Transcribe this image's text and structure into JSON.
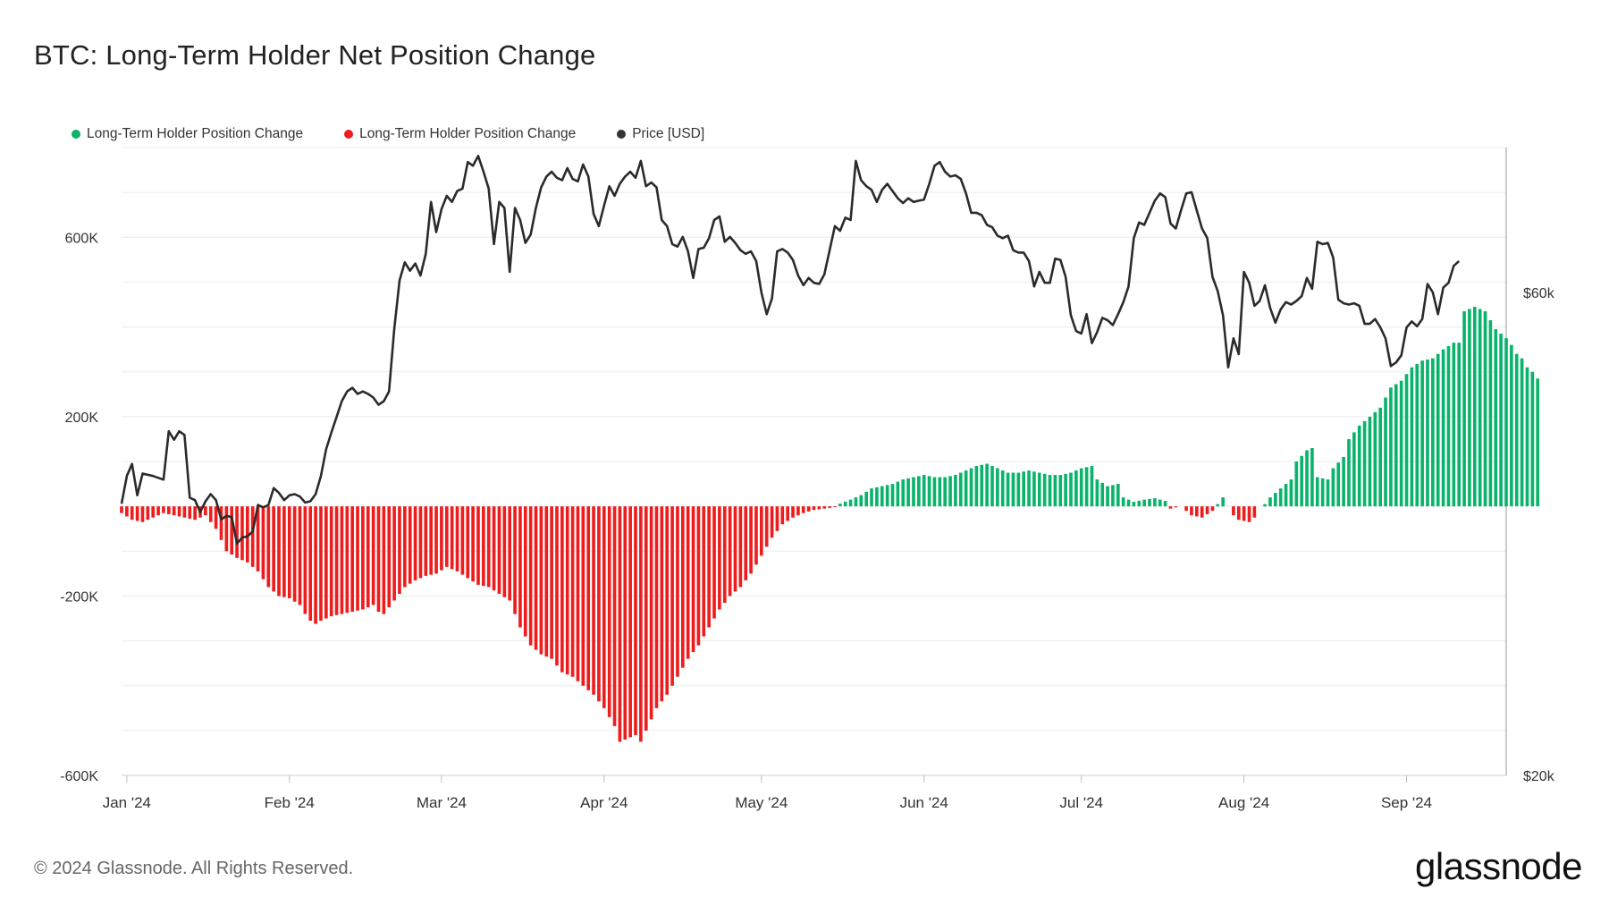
{
  "title": "BTC: Long-Term Holder Net Position Change",
  "legend": [
    {
      "label": "Long-Term Holder Position Change",
      "color": "#0ab36b"
    },
    {
      "label": "Long-Term Holder Position Change",
      "color": "#ee1c1c"
    },
    {
      "label": "Price [USD]",
      "color": "#333333"
    }
  ],
  "footer": {
    "copyright": "© 2024 Glassnode. All Rights Reserved.",
    "brand": "glassnode"
  },
  "chart_data": {
    "type": "bar",
    "title": "BTC: Long-Term Holder Net Position Change",
    "xlabel": "",
    "ylabel": "",
    "grid": true,
    "legend_position": "top-left",
    "x_tick_labels": [
      "Jan '24",
      "Feb '24",
      "Mar '24",
      "Apr '24",
      "May '24",
      "Jun '24",
      "Jul '24",
      "Aug '24",
      "Sep '24"
    ],
    "x_tick_day": [
      1,
      32,
      61,
      92,
      122,
      153,
      183,
      214,
      245
    ],
    "x_range_days": [
      0,
      264
    ],
    "left_axis": {
      "ticks": [
        600000,
        200000,
        -200000,
        -600000
      ],
      "tick_labels": [
        "600K",
        "200K",
        "-200K",
        "-600K"
      ],
      "range": [
        -600000,
        800000
      ]
    },
    "right_axis": {
      "ticks": [
        60000,
        20000
      ],
      "tick_labels": [
        "$60k",
        "$20k"
      ],
      "range": [
        20000,
        72000
      ]
    },
    "position_change_keyframes": [
      [
        0,
        -15000
      ],
      [
        2,
        -30000
      ],
      [
        4,
        -35000
      ],
      [
        6,
        -25000
      ],
      [
        8,
        -15000
      ],
      [
        10,
        -20000
      ],
      [
        12,
        -25000
      ],
      [
        14,
        -30000
      ],
      [
        16,
        -20000
      ],
      [
        18,
        -50000
      ],
      [
        20,
        -100000
      ],
      [
        22,
        -115000
      ],
      [
        24,
        -125000
      ],
      [
        26,
        -145000
      ],
      [
        28,
        -180000
      ],
      [
        30,
        -200000
      ],
      [
        32,
        -205000
      ],
      [
        34,
        -220000
      ],
      [
        35,
        -240000
      ],
      [
        36,
        -255000
      ],
      [
        37,
        -262000
      ],
      [
        38,
        -255000
      ],
      [
        40,
        -245000
      ],
      [
        42,
        -240000
      ],
      [
        44,
        -235000
      ],
      [
        46,
        -230000
      ],
      [
        48,
        -220000
      ],
      [
        49,
        -235000
      ],
      [
        50,
        -240000
      ],
      [
        52,
        -210000
      ],
      [
        54,
        -180000
      ],
      [
        56,
        -165000
      ],
      [
        58,
        -155000
      ],
      [
        60,
        -150000
      ],
      [
        62,
        -135000
      ],
      [
        64,
        -145000
      ],
      [
        66,
        -160000
      ],
      [
        68,
        -175000
      ],
      [
        70,
        -180000
      ],
      [
        72,
        -195000
      ],
      [
        74,
        -210000
      ],
      [
        76,
        -270000
      ],
      [
        78,
        -310000
      ],
      [
        80,
        -330000
      ],
      [
        82,
        -340000
      ],
      [
        84,
        -370000
      ],
      [
        86,
        -380000
      ],
      [
        88,
        -400000
      ],
      [
        90,
        -420000
      ],
      [
        92,
        -450000
      ],
      [
        94,
        -490000
      ],
      [
        95,
        -525000
      ],
      [
        96,
        -520000
      ],
      [
        98,
        -510000
      ],
      [
        99,
        -525000
      ],
      [
        100,
        -500000
      ],
      [
        102,
        -450000
      ],
      [
        104,
        -420000
      ],
      [
        106,
        -380000
      ],
      [
        108,
        -340000
      ],
      [
        110,
        -310000
      ],
      [
        112,
        -270000
      ],
      [
        114,
        -230000
      ],
      [
        116,
        -200000
      ],
      [
        118,
        -180000
      ],
      [
        120,
        -150000
      ],
      [
        122,
        -110000
      ],
      [
        124,
        -70000
      ],
      [
        126,
        -40000
      ],
      [
        128,
        -25000
      ],
      [
        130,
        -15000
      ],
      [
        132,
        -8000
      ],
      [
        134,
        -5000
      ],
      [
        136,
        -2000
      ],
      [
        137,
        6000
      ],
      [
        139,
        15000
      ],
      [
        141,
        25000
      ],
      [
        143,
        40000
      ],
      [
        145,
        45000
      ],
      [
        147,
        50000
      ],
      [
        149,
        60000
      ],
      [
        151,
        65000
      ],
      [
        153,
        70000
      ],
      [
        155,
        65000
      ],
      [
        157,
        65000
      ],
      [
        159,
        70000
      ],
      [
        161,
        80000
      ],
      [
        163,
        90000
      ],
      [
        165,
        95000
      ],
      [
        167,
        85000
      ],
      [
        169,
        75000
      ],
      [
        171,
        75000
      ],
      [
        173,
        80000
      ],
      [
        175,
        75000
      ],
      [
        177,
        70000
      ],
      [
        179,
        70000
      ],
      [
        181,
        75000
      ],
      [
        183,
        85000
      ],
      [
        185,
        90000
      ],
      [
        186,
        60000
      ],
      [
        188,
        45000
      ],
      [
        190,
        50000
      ],
      [
        191,
        20000
      ],
      [
        193,
        10000
      ],
      [
        195,
        15000
      ],
      [
        197,
        18000
      ],
      [
        199,
        12000
      ],
      [
        200,
        -5000
      ],
      [
        202,
        0
      ],
      [
        204,
        -20000
      ],
      [
        206,
        -25000
      ],
      [
        208,
        -10000
      ],
      [
        209,
        5000
      ],
      [
        210,
        20000
      ],
      [
        211,
        0
      ],
      [
        212,
        -20000
      ],
      [
        213,
        -30000
      ],
      [
        215,
        -35000
      ],
      [
        216,
        -25000
      ],
      [
        217,
        0
      ],
      [
        218,
        5000
      ],
      [
        219,
        20000
      ],
      [
        221,
        40000
      ],
      [
        223,
        60000
      ],
      [
        224,
        100000
      ],
      [
        226,
        125000
      ],
      [
        227,
        130000
      ],
      [
        228,
        65000
      ],
      [
        230,
        60000
      ],
      [
        231,
        85000
      ],
      [
        233,
        110000
      ],
      [
        234,
        150000
      ],
      [
        236,
        180000
      ],
      [
        238,
        200000
      ],
      [
        240,
        220000
      ],
      [
        242,
        265000
      ],
      [
        244,
        280000
      ],
      [
        246,
        310000
      ],
      [
        248,
        325000
      ],
      [
        250,
        330000
      ],
      [
        252,
        350000
      ],
      [
        254,
        365000
      ],
      [
        255,
        365000
      ],
      [
        256,
        435000
      ],
      [
        257,
        440000
      ],
      [
        258,
        445000
      ],
      [
        260,
        435000
      ],
      [
        262,
        395000
      ],
      [
        263,
        385000
      ],
      [
        264,
        375000
      ],
      [
        265,
        360000
      ],
      [
        266,
        340000
      ],
      [
        267,
        330000
      ],
      [
        268,
        310000
      ],
      [
        269,
        300000
      ],
      [
        270,
        285000
      ]
    ],
    "price_keyframes": [
      [
        0,
        42500
      ],
      [
        1,
        44800
      ],
      [
        2,
        45800
      ],
      [
        3,
        43200
      ],
      [
        4,
        45000
      ],
      [
        6,
        44800
      ],
      [
        8,
        44500
      ],
      [
        9,
        48500
      ],
      [
        10,
        47800
      ],
      [
        11,
        48500
      ],
      [
        12,
        48200
      ],
      [
        13,
        43000
      ],
      [
        14,
        42800
      ],
      [
        15,
        41800
      ],
      [
        16,
        42700
      ],
      [
        17,
        43300
      ],
      [
        18,
        42800
      ],
      [
        19,
        41200
      ],
      [
        20,
        41500
      ],
      [
        21,
        41400
      ],
      [
        22,
        39200
      ],
      [
        23,
        39700
      ],
      [
        24,
        39800
      ],
      [
        25,
        40200
      ],
      [
        26,
        42400
      ],
      [
        27,
        42200
      ],
      [
        28,
        42400
      ],
      [
        29,
        43800
      ],
      [
        30,
        43400
      ],
      [
        31,
        42800
      ],
      [
        32,
        43200
      ],
      [
        33,
        43300
      ],
      [
        34,
        43100
      ],
      [
        35,
        42600
      ],
      [
        36,
        42700
      ],
      [
        37,
        43300
      ],
      [
        38,
        44800
      ],
      [
        39,
        47000
      ],
      [
        40,
        48400
      ],
      [
        41,
        49700
      ],
      [
        42,
        51000
      ],
      [
        43,
        51800
      ],
      [
        44,
        52100
      ],
      [
        45,
        51600
      ],
      [
        46,
        51800
      ],
      [
        47,
        51600
      ],
      [
        48,
        51300
      ],
      [
        49,
        50700
      ],
      [
        50,
        51000
      ],
      [
        51,
        51800
      ],
      [
        52,
        57000
      ],
      [
        53,
        61000
      ],
      [
        54,
        62500
      ],
      [
        55,
        61800
      ],
      [
        56,
        62400
      ],
      [
        57,
        61400
      ],
      [
        58,
        63200
      ],
      [
        59,
        67500
      ],
      [
        60,
        65000
      ],
      [
        61,
        66900
      ],
      [
        62,
        68000
      ],
      [
        63,
        67500
      ],
      [
        64,
        68400
      ],
      [
        65,
        68600
      ],
      [
        66,
        70800
      ],
      [
        67,
        70500
      ],
      [
        68,
        71300
      ],
      [
        69,
        70000
      ],
      [
        70,
        68600
      ],
      [
        71,
        64000
      ],
      [
        72,
        67500
      ],
      [
        73,
        67000
      ],
      [
        74,
        61700
      ],
      [
        75,
        67000
      ],
      [
        76,
        66000
      ],
      [
        77,
        64100
      ],
      [
        78,
        64800
      ],
      [
        79,
        67000
      ],
      [
        80,
        68700
      ],
      [
        81,
        69600
      ],
      [
        82,
        70000
      ],
      [
        83,
        69500
      ],
      [
        84,
        69300
      ],
      [
        85,
        70300
      ],
      [
        86,
        69400
      ],
      [
        87,
        69200
      ],
      [
        88,
        70600
      ],
      [
        89,
        69600
      ],
      [
        90,
        66500
      ],
      [
        91,
        65500
      ],
      [
        92,
        67200
      ],
      [
        93,
        68800
      ],
      [
        94,
        68000
      ],
      [
        95,
        69000
      ],
      [
        96,
        69600
      ],
      [
        97,
        70000
      ],
      [
        98,
        69500
      ],
      [
        99,
        70900
      ],
      [
        100,
        68800
      ],
      [
        101,
        69100
      ],
      [
        102,
        68700
      ],
      [
        103,
        66000
      ],
      [
        104,
        65500
      ],
      [
        105,
        64000
      ],
      [
        106,
        63800
      ],
      [
        107,
        64600
      ],
      [
        108,
        63400
      ],
      [
        109,
        61200
      ],
      [
        110,
        63600
      ],
      [
        111,
        63700
      ],
      [
        112,
        64500
      ],
      [
        113,
        66000
      ],
      [
        114,
        66300
      ],
      [
        115,
        64200
      ],
      [
        116,
        64600
      ],
      [
        117,
        64100
      ],
      [
        118,
        63500
      ],
      [
        119,
        63200
      ],
      [
        120,
        63400
      ],
      [
        121,
        62600
      ],
      [
        122,
        60000
      ],
      [
        123,
        58200
      ],
      [
        124,
        59500
      ],
      [
        125,
        63400
      ],
      [
        126,
        63600
      ],
      [
        127,
        63300
      ],
      [
        128,
        62700
      ],
      [
        129,
        61400
      ],
      [
        130,
        60600
      ],
      [
        131,
        61200
      ],
      [
        132,
        60800
      ],
      [
        133,
        60700
      ],
      [
        134,
        61500
      ],
      [
        135,
        63500
      ],
      [
        136,
        65500
      ],
      [
        137,
        65100
      ],
      [
        138,
        66200
      ],
      [
        139,
        66000
      ],
      [
        140,
        70900
      ],
      [
        141,
        69300
      ],
      [
        142,
        68800
      ],
      [
        143,
        68500
      ],
      [
        144,
        67500
      ],
      [
        145,
        68500
      ],
      [
        146,
        69000
      ],
      [
        147,
        68400
      ],
      [
        148,
        67800
      ],
      [
        149,
        67400
      ],
      [
        150,
        67800
      ],
      [
        151,
        67500
      ],
      [
        152,
        67600
      ],
      [
        153,
        67700
      ],
      [
        154,
        69000
      ],
      [
        155,
        70500
      ],
      [
        156,
        70800
      ],
      [
        157,
        70000
      ],
      [
        158,
        69600
      ],
      [
        159,
        69700
      ],
      [
        160,
        69400
      ],
      [
        161,
        68200
      ],
      [
        162,
        66600
      ],
      [
        163,
        66600
      ],
      [
        164,
        66400
      ],
      [
        165,
        65600
      ],
      [
        166,
        65400
      ],
      [
        167,
        64700
      ],
      [
        168,
        64500
      ],
      [
        169,
        64700
      ],
      [
        170,
        63500
      ],
      [
        171,
        63300
      ],
      [
        172,
        63300
      ],
      [
        173,
        62600
      ],
      [
        174,
        60500
      ],
      [
        175,
        61700
      ],
      [
        176,
        60800
      ],
      [
        177,
        60800
      ],
      [
        178,
        62800
      ],
      [
        179,
        62700
      ],
      [
        180,
        61300
      ],
      [
        181,
        58100
      ],
      [
        182,
        56800
      ],
      [
        183,
        56600
      ],
      [
        184,
        58200
      ],
      [
        185,
        55800
      ],
      [
        186,
        56700
      ],
      [
        187,
        57900
      ],
      [
        188,
        57700
      ],
      [
        189,
        57300
      ],
      [
        190,
        58200
      ],
      [
        191,
        59200
      ],
      [
        192,
        60500
      ],
      [
        193,
        64500
      ],
      [
        194,
        65800
      ],
      [
        195,
        65600
      ],
      [
        196,
        66600
      ],
      [
        197,
        67600
      ],
      [
        198,
        68200
      ],
      [
        199,
        67900
      ],
      [
        200,
        65700
      ],
      [
        201,
        65300
      ],
      [
        202,
        66800
      ],
      [
        203,
        68200
      ],
      [
        204,
        68300
      ],
      [
        205,
        66800
      ],
      [
        206,
        65300
      ],
      [
        207,
        64500
      ],
      [
        208,
        61300
      ],
      [
        209,
        60100
      ],
      [
        210,
        58100
      ],
      [
        211,
        53800
      ],
      [
        212,
        56200
      ],
      [
        213,
        54900
      ],
      [
        214,
        61700
      ],
      [
        215,
        60800
      ],
      [
        216,
        58900
      ],
      [
        217,
        59300
      ],
      [
        218,
        60600
      ],
      [
        219,
        58700
      ],
      [
        220,
        57500
      ],
      [
        221,
        58600
      ],
      [
        222,
        59200
      ],
      [
        223,
        59000
      ],
      [
        224,
        59300
      ],
      [
        225,
        59700
      ],
      [
        226,
        61200
      ],
      [
        227,
        60300
      ],
      [
        228,
        64200
      ],
      [
        229,
        64000
      ],
      [
        230,
        64100
      ],
      [
        231,
        62900
      ],
      [
        232,
        59400
      ],
      [
        233,
        59100
      ],
      [
        234,
        59000
      ],
      [
        235,
        59100
      ],
      [
        236,
        58900
      ],
      [
        237,
        57400
      ],
      [
        238,
        57400
      ],
      [
        239,
        57800
      ],
      [
        240,
        57100
      ],
      [
        241,
        56200
      ],
      [
        242,
        53900
      ],
      [
        243,
        54200
      ],
      [
        244,
        54800
      ],
      [
        245,
        57100
      ],
      [
        246,
        57600
      ],
      [
        247,
        57200
      ],
      [
        248,
        57800
      ],
      [
        249,
        60700
      ],
      [
        250,
        60000
      ],
      [
        251,
        58200
      ],
      [
        252,
        60400
      ],
      [
        253,
        60800
      ],
      [
        254,
        62200
      ],
      [
        255,
        62600
      ]
    ]
  }
}
